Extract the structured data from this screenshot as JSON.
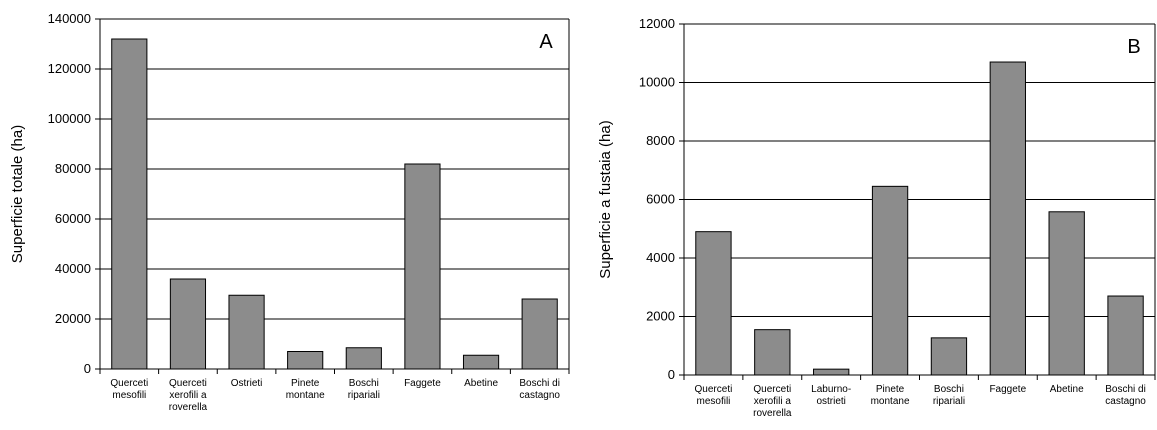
{
  "chart_data": [
    {
      "type": "bar",
      "panel_label": "A",
      "ylabel": "Superficie totale (ha)",
      "xlabel": "",
      "ylim": [
        0,
        140000
      ],
      "yticks": [
        0,
        20000,
        40000,
        60000,
        80000,
        100000,
        120000,
        140000
      ],
      "grid": true,
      "categories": [
        [
          "Querceti",
          "mesofili"
        ],
        [
          "Querceti",
          "xerofili a",
          "roverella"
        ],
        [
          "Ostrieti"
        ],
        [
          "Pinete",
          "montane"
        ],
        [
          "Boschi",
          "ripariali"
        ],
        [
          "Faggete"
        ],
        [
          "Abetine"
        ],
        [
          "Boschi di",
          "castagno"
        ]
      ],
      "values": [
        132000,
        36000,
        29500,
        7000,
        8500,
        82000,
        5500,
        28000
      ]
    },
    {
      "type": "bar",
      "panel_label": "B",
      "ylabel": "Superficie a fustaia (ha)",
      "xlabel": "",
      "ylim": [
        0,
        12000
      ],
      "yticks": [
        0,
        2000,
        4000,
        6000,
        8000,
        10000,
        12000
      ],
      "grid": true,
      "categories": [
        [
          "Querceti",
          "mesofili"
        ],
        [
          "Querceti",
          "xerofili a",
          "roverella"
        ],
        [
          "Laburno-",
          "ostrieti"
        ],
        [
          "Pinete",
          "montane"
        ],
        [
          "Boschi",
          "ripariali"
        ],
        [
          "Faggete"
        ],
        [
          "Abetine"
        ],
        [
          "Boschi di",
          "castagno"
        ]
      ],
      "values": [
        4900,
        1550,
        200,
        6450,
        1270,
        10700,
        5580,
        2700
      ]
    }
  ]
}
